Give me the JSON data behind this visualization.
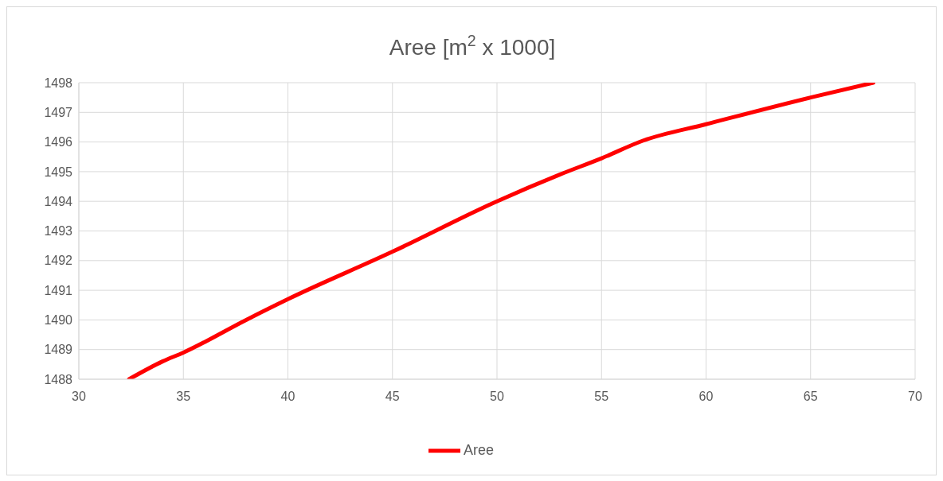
{
  "chart_data": {
    "type": "line",
    "title": "Aree [m$^{2}$ x 1000]",
    "x": [
      32.4,
      34,
      35,
      38,
      40,
      45,
      50,
      53,
      55,
      57,
      60,
      65,
      68
    ],
    "series": [
      {
        "name": "Aree",
        "color": "#ff0000",
        "values": [
          1488,
          1488.6,
          1488.9,
          1490,
          1490.7,
          1492.3,
          1494,
          1494.9,
          1495.45,
          1496.05,
          1496.6,
          1497.5,
          1498
        ]
      }
    ],
    "xlim": [
      30,
      70
    ],
    "xticks": [
      30,
      35,
      40,
      45,
      50,
      55,
      60,
      65,
      70
    ],
    "ylim": [
      1488,
      1498
    ],
    "yticks": [
      1488,
      1489,
      1490,
      1491,
      1492,
      1493,
      1494,
      1495,
      1496,
      1497,
      1498
    ],
    "grid": true,
    "legend": "bottom",
    "marker": "none",
    "line_style": "solid"
  }
}
